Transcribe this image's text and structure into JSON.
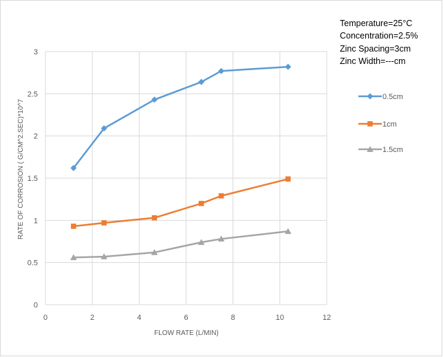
{
  "chart_data": {
    "type": "line",
    "title": "",
    "xlabel": "FLOW RATE (L/MIN)",
    "ylabel": "RATE OF CORROSION ( G/CM^2.SEC)*10^7",
    "xlim": [
      0,
      12
    ],
    "ylim": [
      0,
      3
    ],
    "x_ticks": [
      "0",
      "2",
      "4",
      "6",
      "8",
      "10",
      "12"
    ],
    "y_ticks": [
      "0",
      "0.5",
      "1",
      "1.5",
      "2",
      "2.5",
      "3"
    ],
    "grid": true,
    "legend_position": "right",
    "annotations": [
      "Temperature=25°C",
      "Concentration=2.5%",
      "Zinc Spacing=3cm",
      "Zinc Width=---cm"
    ],
    "x": [
      1.2,
      2.5,
      4.65,
      6.65,
      7.5,
      10.35
    ],
    "series": [
      {
        "name": "0.5cm",
        "values": [
          1.62,
          2.09,
          2.43,
          2.64,
          2.77,
          2.82
        ],
        "color": "#5b9bd5",
        "marker": "diamond"
      },
      {
        "name": "1cm",
        "values": [
          0.93,
          0.97,
          1.03,
          1.2,
          1.29,
          1.49
        ],
        "color": "#ed7d31",
        "marker": "square"
      },
      {
        "name": "1.5cm",
        "values": [
          0.56,
          0.57,
          0.62,
          0.74,
          0.78,
          0.87
        ],
        "color": "#a5a5a5",
        "marker": "triangle"
      }
    ]
  }
}
